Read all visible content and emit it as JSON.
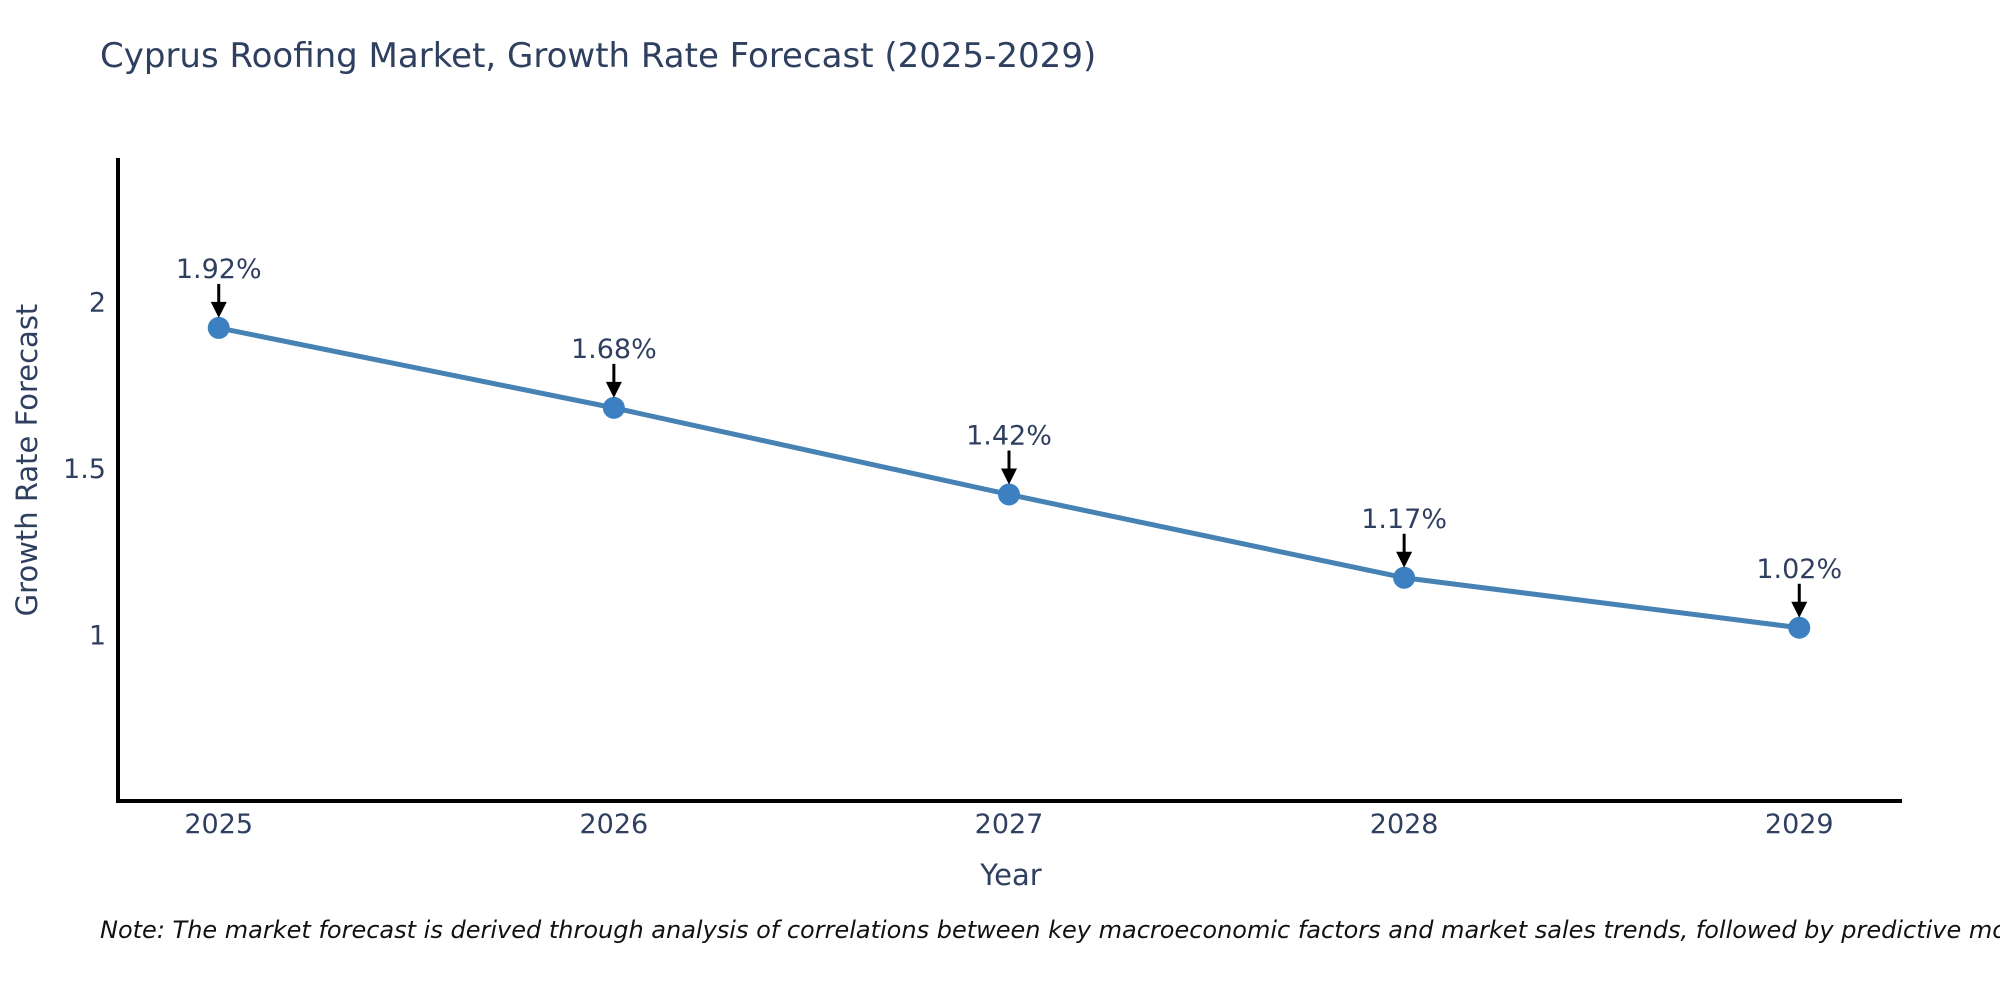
{
  "chart_data": {
    "type": "line",
    "title": "Cyprus Roofing Market, Growth Rate Forecast (2025-2029)",
    "xlabel": "Year",
    "ylabel": "Growth Rate Forecast",
    "x": [
      2025,
      2026,
      2027,
      2028,
      2029
    ],
    "x_tick_labels": [
      "2025",
      "2026",
      "2027",
      "2028",
      "2029"
    ],
    "values": [
      1.92,
      1.68,
      1.42,
      1.17,
      1.02
    ],
    "point_labels": [
      "1.92%",
      "1.68%",
      "1.42%",
      "1.17%",
      "1.02%"
    ],
    "y_ticks": [
      {
        "value": 1,
        "label": "1"
      },
      {
        "value": 1.5,
        "label": "1.5"
      },
      {
        "value": 2,
        "label": "2"
      }
    ],
    "ylim": [
      0.5,
      2.43
    ],
    "xlim": [
      2024.74,
      2029.26
    ],
    "grid": false,
    "legend_position": "none",
    "annotation_style": "value label above each point with a black arrow pointing down to the marker",
    "colors": {
      "line": "#4682b4",
      "marker": "#3c80c2",
      "arrow": "#000000",
      "axis_spine": "#000000",
      "chart_text": "#2f3f5f",
      "note_text": "#111111",
      "background": "#ffffff"
    }
  },
  "footnote": {
    "text": "Note: The market forecast is derived through analysis of correlations between key macroeconomic factors and market sales trends, followed by predictive modeling to project future sales"
  }
}
